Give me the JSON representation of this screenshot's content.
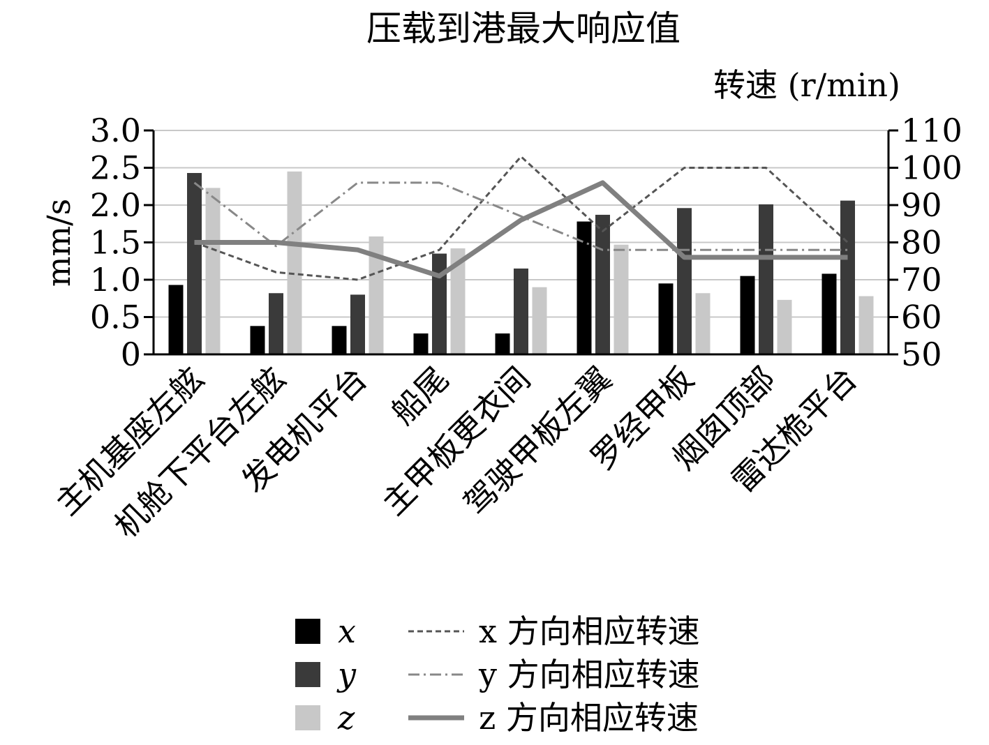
{
  "chart_data": {
    "type": "bar",
    "title": "压载到港最大响应值",
    "ylabel": "mm/s",
    "y2label": "转速 (r/min)",
    "ylim": [
      0,
      3.0
    ],
    "y2lim": [
      50,
      110
    ],
    "yticks": [
      "0",
      "0.5",
      "1.0",
      "1.5",
      "2.0",
      "2.5",
      "3.0"
    ],
    "y2ticks": [
      "50",
      "60",
      "70",
      "80",
      "90",
      "100",
      "110"
    ],
    "grid": true,
    "legend_position": "bottom",
    "categories": [
      "主机基座左舷",
      "机舱下平台左舷",
      "发电机平台",
      "船尾",
      "主甲板更衣间",
      "驾驶甲板左翼",
      "罗经甲板",
      "烟囱顶部",
      "雷达桅平台"
    ],
    "series": [
      {
        "name": "x",
        "kind": "bar",
        "axis": "left",
        "color": "#000000",
        "values": [
          0.93,
          0.38,
          0.38,
          0.28,
          0.28,
          1.78,
          0.95,
          1.05,
          1.08
        ]
      },
      {
        "name": "y",
        "kind": "bar",
        "axis": "left",
        "color": "#3a3a3a",
        "values": [
          2.43,
          0.82,
          0.8,
          1.35,
          1.15,
          1.87,
          1.96,
          2.01,
          2.06
        ]
      },
      {
        "name": "z",
        "kind": "bar",
        "axis": "left",
        "color": "#c8c8c8",
        "values": [
          2.23,
          2.45,
          1.58,
          1.42,
          0.9,
          1.47,
          0.82,
          0.73,
          0.78
        ]
      },
      {
        "name": "x 方向相应转速",
        "kind": "line",
        "axis": "right",
        "style": "dashed",
        "color": "#555555",
        "values": [
          80,
          72,
          70,
          78,
          103,
          83,
          100,
          100,
          80
        ]
      },
      {
        "name": "y 方向相应转速",
        "kind": "line",
        "axis": "right",
        "style": "dashdot",
        "color": "#888888",
        "values": [
          96,
          79,
          96,
          96,
          87,
          78,
          78,
          78,
          78
        ]
      },
      {
        "name": "z 方向相应转速",
        "kind": "line",
        "axis": "right",
        "style": "solid",
        "color": "#808080",
        "values": [
          80,
          80,
          78,
          71,
          86,
          96,
          76,
          76,
          76
        ]
      }
    ]
  }
}
